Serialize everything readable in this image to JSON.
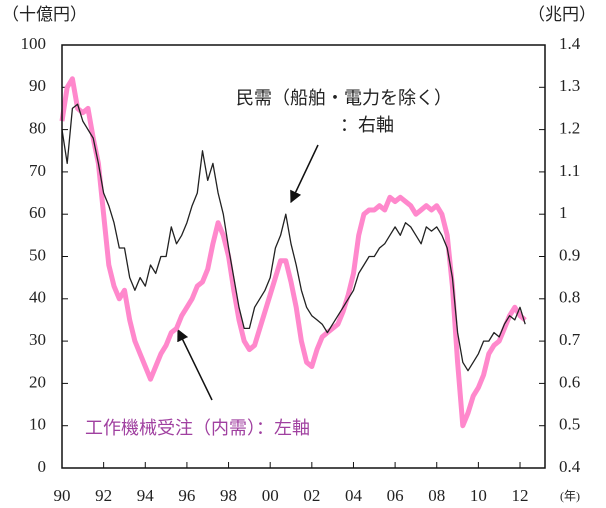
{
  "chart_data": {
    "type": "line",
    "y_label": "（十億円）",
    "y2_label": "（兆円）",
    "x_unit": "(年)",
    "annotations": [
      "民需（船舶・電力を除く）",
      "：右軸",
      "工作機械受注（内需）：左軸"
    ],
    "x": [
      1990,
      1990.25,
      1990.5,
      1990.75,
      1991,
      1991.25,
      1991.5,
      1991.75,
      1992,
      1992.25,
      1992.5,
      1992.75,
      1993,
      1993.25,
      1993.5,
      1993.75,
      1994,
      1994.25,
      1994.5,
      1994.75,
      1995,
      1995.25,
      1995.5,
      1995.75,
      1996,
      1996.25,
      1996.5,
      1996.75,
      1997,
      1997.25,
      1997.5,
      1997.75,
      1998,
      1998.25,
      1998.5,
      1998.75,
      1999,
      1999.25,
      1999.5,
      1999.75,
      2000,
      2000.25,
      2000.5,
      2000.75,
      2001,
      2001.25,
      2001.5,
      2001.75,
      2002,
      2002.25,
      2002.5,
      2002.75,
      2003,
      2003.25,
      2003.5,
      2003.75,
      2004,
      2004.25,
      2004.5,
      2004.75,
      2005,
      2005.25,
      2005.5,
      2005.75,
      2006,
      2006.25,
      2006.5,
      2006.75,
      2007,
      2007.25,
      2007.5,
      2007.75,
      2008,
      2008.25,
      2008.5,
      2008.75,
      2009,
      2009.25,
      2009.5,
      2009.75,
      2010,
      2010.25,
      2010.5,
      2010.75,
      2011,
      2011.25,
      2011.5,
      2011.75,
      2012,
      2012.25
    ],
    "series": [
      {
        "name": "工作機械受注（内需）",
        "color": "#ff88cc",
        "axis": "y",
        "values": [
          82,
          90,
          92,
          85,
          84,
          85,
          78,
          72,
          60,
          48,
          43,
          40,
          42,
          35,
          30,
          27,
          24,
          21,
          24,
          27,
          29,
          32,
          33,
          36,
          38,
          40,
          43,
          44,
          47,
          53,
          58,
          55,
          50,
          42,
          35,
          30,
          28,
          29,
          33,
          37,
          41,
          45,
          49,
          49,
          44,
          38,
          30,
          25,
          24,
          28,
          31,
          32,
          33,
          34,
          37,
          41,
          46,
          55,
          60,
          61,
          61,
          62,
          61,
          64,
          63,
          64,
          63,
          62,
          60,
          61,
          62,
          61,
          62,
          60,
          55,
          43,
          25,
          10,
          13,
          17,
          19,
          22,
          27,
          29,
          30,
          33,
          36,
          38,
          36,
          35
        ]
      },
      {
        "name": "民需（船舶・電力を除く）",
        "color": "#222222",
        "axis": "y2",
        "values": [
          1.2,
          1.12,
          1.25,
          1.26,
          1.22,
          1.2,
          1.18,
          1.12,
          1.05,
          1.02,
          0.98,
          0.92,
          0.92,
          0.85,
          0.82,
          0.85,
          0.83,
          0.88,
          0.86,
          0.9,
          0.9,
          0.97,
          0.93,
          0.95,
          0.98,
          1.02,
          1.05,
          1.15,
          1.08,
          1.12,
          1.05,
          1.0,
          0.92,
          0.85,
          0.78,
          0.73,
          0.73,
          0.78,
          0.8,
          0.82,
          0.85,
          0.92,
          0.95,
          1.0,
          0.93,
          0.88,
          0.82,
          0.78,
          0.76,
          0.75,
          0.74,
          0.72,
          0.74,
          0.76,
          0.78,
          0.8,
          0.82,
          0.86,
          0.88,
          0.9,
          0.9,
          0.92,
          0.93,
          0.95,
          0.97,
          0.95,
          0.98,
          0.97,
          0.95,
          0.93,
          0.97,
          0.96,
          0.97,
          0.95,
          0.92,
          0.85,
          0.72,
          0.65,
          0.63,
          0.65,
          0.67,
          0.7,
          0.7,
          0.72,
          0.71,
          0.74,
          0.76,
          0.75,
          0.78,
          0.74
        ]
      }
    ],
    "xlim": [
      1990,
      2013.2
    ],
    "xticks": [
      {
        "value": 1990,
        "label": "90"
      },
      {
        "value": 1992,
        "label": "92"
      },
      {
        "value": 1994,
        "label": "94"
      },
      {
        "value": 1996,
        "label": "96"
      },
      {
        "value": 1998,
        "label": "98"
      },
      {
        "value": 2000,
        "label": "00"
      },
      {
        "value": 2002,
        "label": "02"
      },
      {
        "value": 2004,
        "label": "04"
      },
      {
        "value": 2006,
        "label": "06"
      },
      {
        "value": 2008,
        "label": "08"
      },
      {
        "value": 2010,
        "label": "10"
      },
      {
        "value": 2012,
        "label": "12"
      }
    ],
    "ylim": [
      0,
      100
    ],
    "yticks": [
      0,
      10,
      20,
      30,
      40,
      50,
      60,
      70,
      80,
      90,
      100
    ],
    "y2lim": [
      0.4,
      1.4
    ],
    "y2ticks": [
      0.4,
      0.5,
      0.6,
      0.7,
      0.8,
      0.9,
      1.0,
      1.1,
      1.2,
      1.3,
      1.4
    ]
  }
}
